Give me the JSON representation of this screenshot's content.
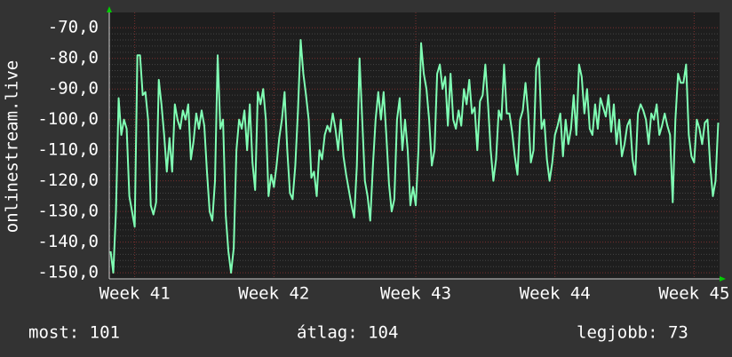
{
  "chart_data": {
    "type": "line",
    "y_label": "onlinestream.live",
    "categories": [
      null,
      null,
      null,
      null,
      null,
      null,
      null,
      null,
      null,
      "Week 41",
      null,
      null,
      null,
      null,
      null,
      null,
      null,
      null,
      null,
      null,
      null,
      null,
      null,
      null,
      null,
      null,
      null,
      null,
      null,
      null,
      null,
      null,
      null,
      null,
      null,
      null,
      null,
      null,
      null,
      null,
      null,
      null,
      null,
      null,
      null,
      null,
      null,
      null,
      null,
      null,
      null,
      null,
      null,
      null,
      null,
      null,
      null,
      null,
      null,
      null,
      null,
      "Week 42",
      null,
      null,
      null,
      null,
      null,
      null,
      null,
      null,
      null,
      null,
      null,
      null,
      null,
      null,
      null,
      null,
      null,
      null,
      null,
      null,
      null,
      null,
      null,
      null,
      null,
      null,
      null,
      null,
      null,
      null,
      null,
      null,
      null,
      null,
      null,
      null,
      null,
      null,
      null,
      null,
      null,
      null,
      null,
      null,
      null,
      null,
      null,
      null,
      null,
      null,
      null,
      null,
      "Week 43",
      null,
      null,
      null,
      null,
      null,
      null,
      null,
      null,
      null,
      null,
      null,
      null,
      null,
      null,
      null,
      null,
      null,
      null,
      null,
      null,
      null,
      null,
      null,
      null,
      null,
      null,
      null,
      null,
      null,
      null,
      null,
      null,
      null,
      null,
      null,
      null,
      null,
      null,
      null,
      null,
      null,
      null,
      null,
      null,
      null,
      null,
      null,
      null,
      null,
      null,
      null,
      "Week 44",
      null,
      null,
      null,
      null,
      null,
      null,
      null,
      null,
      null,
      null,
      null,
      null,
      null,
      null,
      null,
      null,
      null,
      null,
      null,
      null,
      null,
      null,
      null,
      null,
      null,
      null,
      null,
      null,
      null,
      null,
      null,
      null,
      null,
      null,
      null,
      null,
      null,
      null,
      null,
      null,
      null,
      null,
      null,
      null,
      null,
      null,
      null,
      null,
      null,
      null,
      null,
      "Week 45",
      null,
      null,
      null,
      null,
      null,
      null,
      null,
      null,
      null
    ],
    "series": [
      {
        "name": "onlinestream.live",
        "color": "#80ffb4",
        "values": [
          -143,
          -150,
          -130,
          -93,
          -105,
          -100,
          -103,
          -125,
          -130,
          -135,
          -79,
          -79,
          -92,
          -91,
          -100,
          -128,
          -131,
          -127,
          -87,
          -95,
          -105,
          -117,
          -106,
          -117,
          -95,
          -100,
          -103,
          -97,
          -100,
          -95,
          -113,
          -107,
          -98,
          -103,
          -97,
          -102,
          -117,
          -130,
          -133,
          -120,
          -79,
          -103,
          -100,
          -131,
          -143,
          -150,
          -142,
          -110,
          -100,
          -103,
          -97,
          -110,
          -95,
          -114,
          -123,
          -91,
          -95,
          -90,
          -100,
          -125,
          -118,
          -122,
          -115,
          -106,
          -100,
          -91,
          -110,
          -124,
          -126,
          -115,
          -97,
          -74,
          -85,
          -92,
          -100,
          -119,
          -117,
          -125,
          -110,
          -113,
          -105,
          -102,
          -104,
          -98,
          -103,
          -110,
          -100,
          -112,
          -118,
          -123,
          -128,
          -132,
          -115,
          -80,
          -100,
          -120,
          -125,
          -133,
          -115,
          -100,
          -91,
          -100,
          -91,
          -105,
          -121,
          -130,
          -126,
          -100,
          -93,
          -110,
          -100,
          -110,
          -128,
          -122,
          -128,
          -110,
          -75,
          -85,
          -90,
          -100,
          -115,
          -110,
          -85,
          -82,
          -90,
          -86,
          -102,
          -85,
          -100,
          -103,
          -97,
          -102,
          -90,
          -95,
          -87,
          -98,
          -96,
          -110,
          -94,
          -92,
          -82,
          -95,
          -110,
          -120,
          -113,
          -97,
          -100,
          -82,
          -98,
          -98,
          -104,
          -112,
          -118,
          -100,
          -97,
          -88,
          -98,
          -114,
          -110,
          -83,
          -80,
          -103,
          -100,
          -113,
          -120,
          -114,
          -105,
          -102,
          -98,
          -112,
          -100,
          -108,
          -103,
          -92,
          -105,
          -82,
          -86,
          -98,
          -90,
          -103,
          -105,
          -95,
          -103,
          -93,
          -96,
          -99,
          -92,
          -104,
          -95,
          -108,
          -100,
          -112,
          -108,
          -102,
          -100,
          -113,
          -118,
          -98,
          -95,
          -97,
          -100,
          -108,
          -98,
          -100,
          -95,
          -105,
          -102,
          -98,
          -102,
          -105,
          -127,
          -100,
          -85,
          -88,
          -88,
          -82,
          -105,
          -112,
          -114,
          -100,
          -103,
          -108,
          -101,
          -100,
          -115,
          -125,
          -120,
          -101
        ]
      }
    ],
    "ylim": [
      -152,
      -65
    ],
    "yticks": [
      {
        "value": -150,
        "label": "-150,0"
      },
      {
        "value": -140,
        "label": "-140,0"
      },
      {
        "value": -130,
        "label": "-130,0"
      },
      {
        "value": -120,
        "label": "-120,0"
      },
      {
        "value": -110,
        "label": "-110,0"
      },
      {
        "value": -100,
        "label": "-100,0"
      },
      {
        "value": -90,
        "label": "-90,0"
      },
      {
        "value": -80,
        "label": "-80,0"
      },
      {
        "value": -70,
        "label": "-70,0"
      }
    ],
    "grid": true,
    "footer": [
      "most: 101",
      "átlag: 104",
      "legjobb: 73"
    ]
  }
}
